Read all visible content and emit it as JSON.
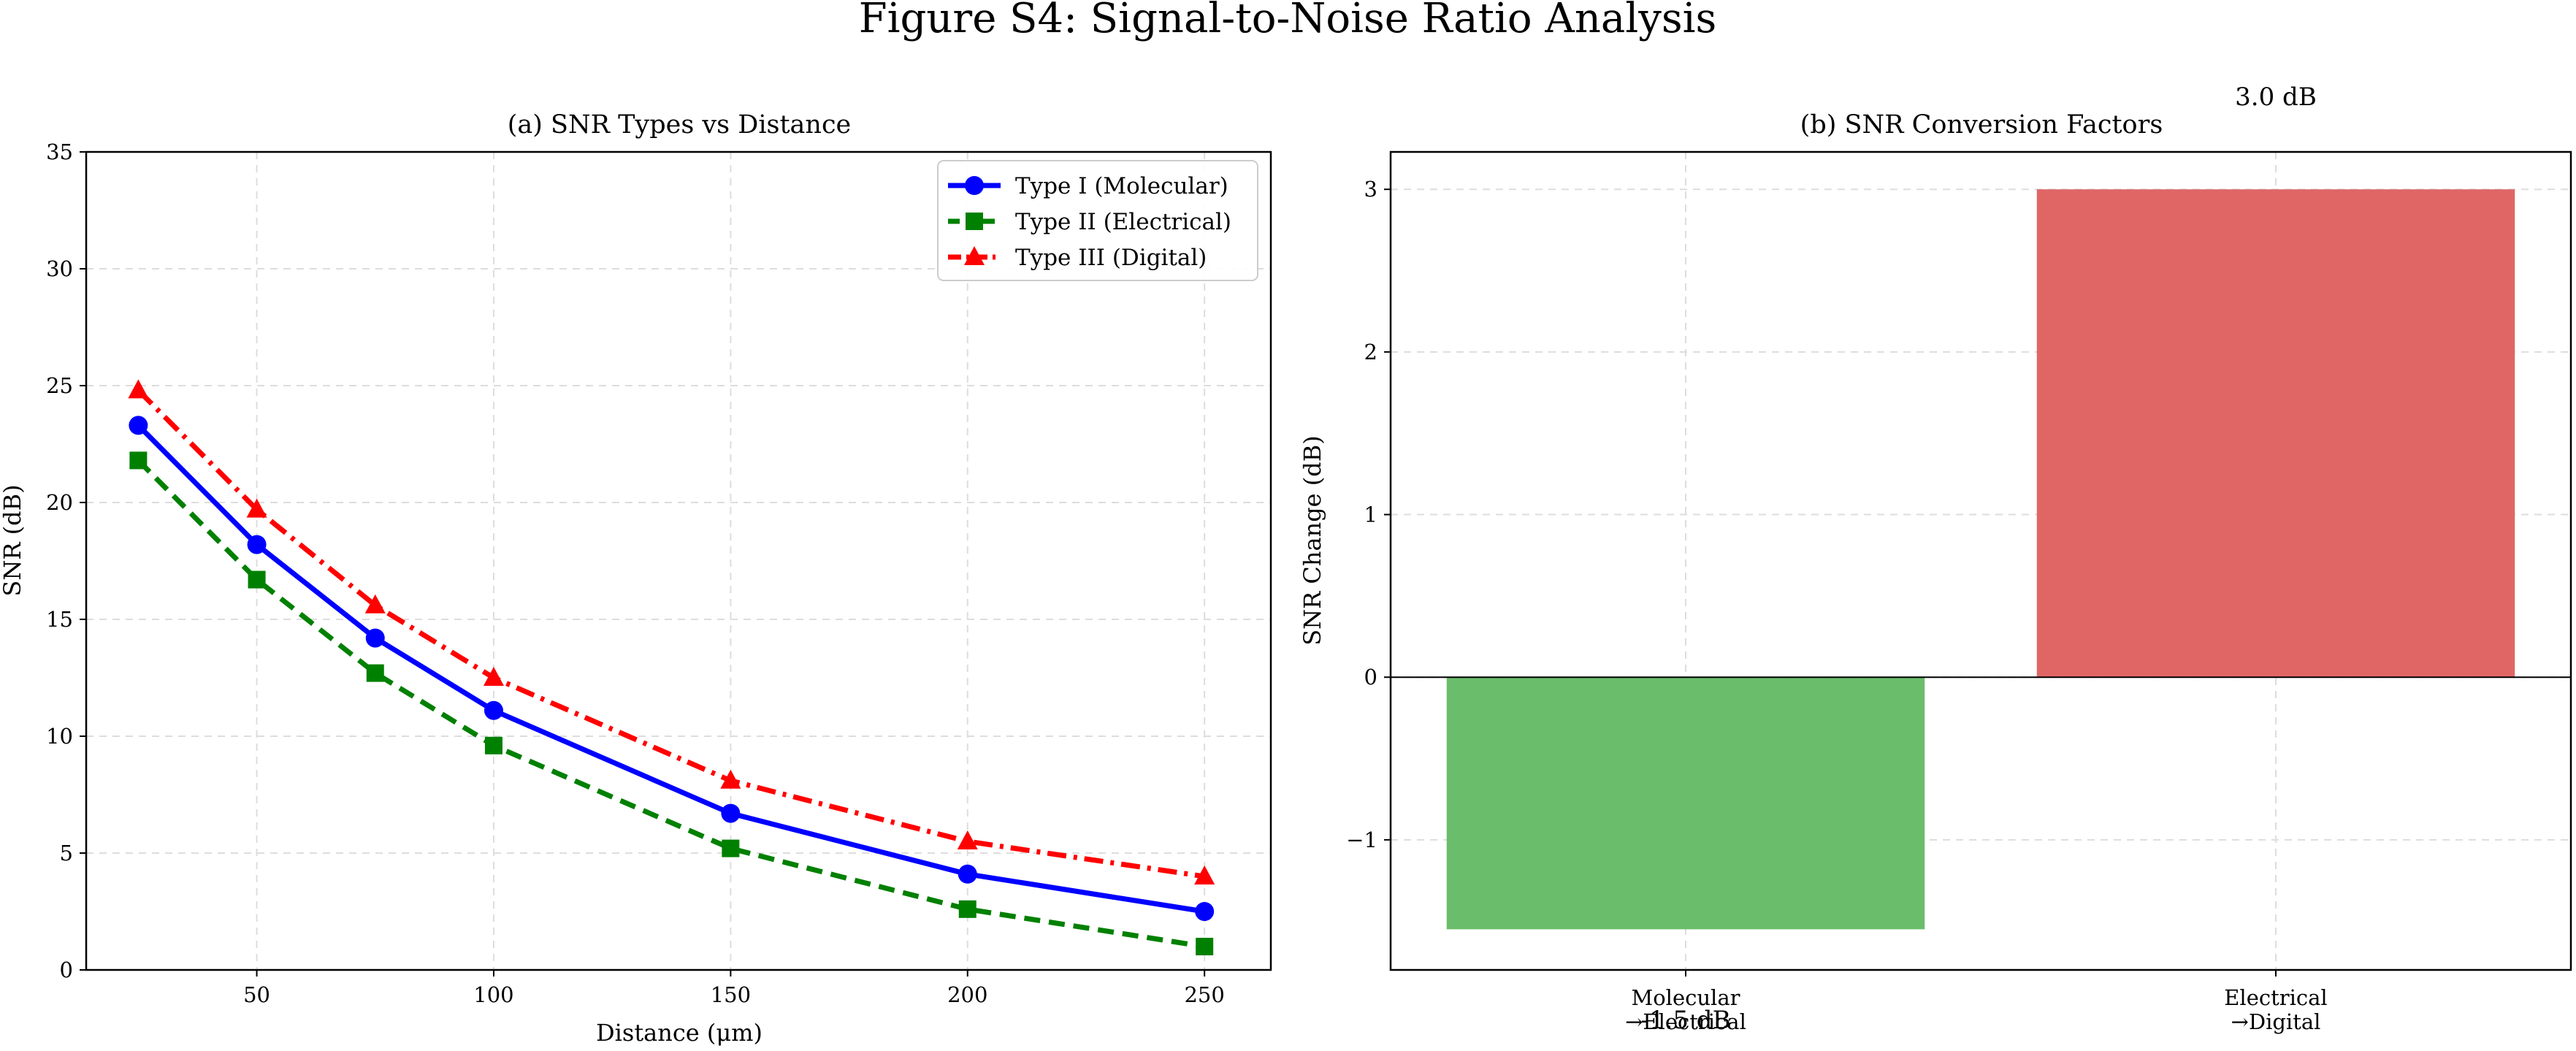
{
  "figure": {
    "title": "Figure S4: Signal-to-Noise Ratio Analysis"
  },
  "chart_data": [
    {
      "type": "line",
      "title": "(a) SNR Types vs Distance",
      "xlabel": "Distance (μm)",
      "ylabel": "SNR (dB)",
      "xlim": [
        14,
        264
      ],
      "ylim": [
        0,
        35
      ],
      "xticks": [
        50,
        100,
        150,
        200,
        250
      ],
      "yticks": [
        0,
        5,
        10,
        15,
        20,
        25,
        30,
        35
      ],
      "grid": true,
      "legend_position": "top-right",
      "x": [
        25,
        50,
        75,
        100,
        150,
        200,
        250
      ],
      "series": [
        {
          "name": "Type I (Molecular)",
          "values": [
            23.3,
            18.2,
            14.2,
            11.1,
            6.7,
            4.1,
            2.5
          ],
          "color": "#0000ff",
          "linestyle": "solid",
          "marker": "circle"
        },
        {
          "name": "Type II (Electrical)",
          "values": [
            21.8,
            16.7,
            12.7,
            9.6,
            5.2,
            2.6,
            1.0
          ],
          "color": "#008000",
          "linestyle": "dashed",
          "marker": "square"
        },
        {
          "name": "Type III (Digital)",
          "values": [
            24.8,
            19.7,
            15.6,
            12.5,
            8.1,
            5.5,
            4.0
          ],
          "color": "#ff0000",
          "linestyle": "dashdot",
          "marker": "triangle"
        }
      ]
    },
    {
      "type": "bar",
      "title": "(b) SNR Conversion Factors",
      "xlabel": "",
      "ylabel": "SNR Change (dB)",
      "categories": [
        "Molecular\n→Electrical",
        "Electrical\n→Digital"
      ],
      "values": [
        -1.55,
        3.0
      ],
      "value_labels": [
        "-1.5 dB",
        "3.0 dB"
      ],
      "colors": [
        "#6abd6a",
        "#e06666"
      ],
      "ylim": [
        -1.8,
        3.23
      ],
      "yticks": [
        -1,
        0,
        1,
        2,
        3
      ],
      "ytick_labels": [
        "−1",
        "0",
        "1",
        "2",
        "3"
      ],
      "grid": true
    }
  ]
}
